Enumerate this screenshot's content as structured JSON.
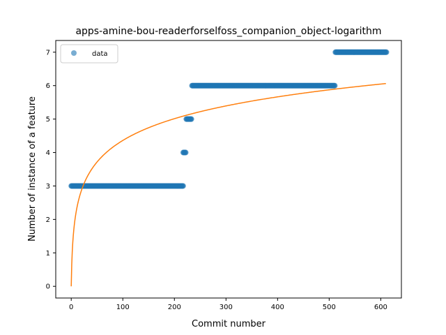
{
  "chart_data": {
    "type": "scatter",
    "title": "apps-amine-bou-readerforselfoss_companion_object-logarithm",
    "xlabel": "Commit number",
    "ylabel": "Number of instance of a feature",
    "xlim": [
      -30,
      640
    ],
    "ylim": [
      -0.35,
      7.35
    ],
    "xticks": [
      0,
      100,
      200,
      300,
      400,
      500,
      600
    ],
    "yticks": [
      0,
      1,
      2,
      3,
      4,
      5,
      6,
      7
    ],
    "grid": false,
    "legend": {
      "position": "top-left",
      "entries": [
        "data"
      ]
    },
    "colors": {
      "data": "#1f77b4",
      "fit": "#ff7f0e"
    },
    "series": [
      {
        "name": "data",
        "kind": "scatter",
        "segments": [
          {
            "x_from": 0,
            "x_to": 217,
            "y": 3
          },
          {
            "x_from": 217,
            "x_to": 222,
            "y": 4
          },
          {
            "x_from": 223,
            "x_to": 233,
            "y": 5
          },
          {
            "x_from": 234,
            "x_to": 511,
            "y": 6
          },
          {
            "x_from": 512,
            "x_to": 611,
            "y": 7
          }
        ]
      },
      {
        "kind": "line",
        "function": "a*ln(x+1)",
        "a": 0.945,
        "x_range": [
          0,
          610
        ]
      }
    ]
  }
}
